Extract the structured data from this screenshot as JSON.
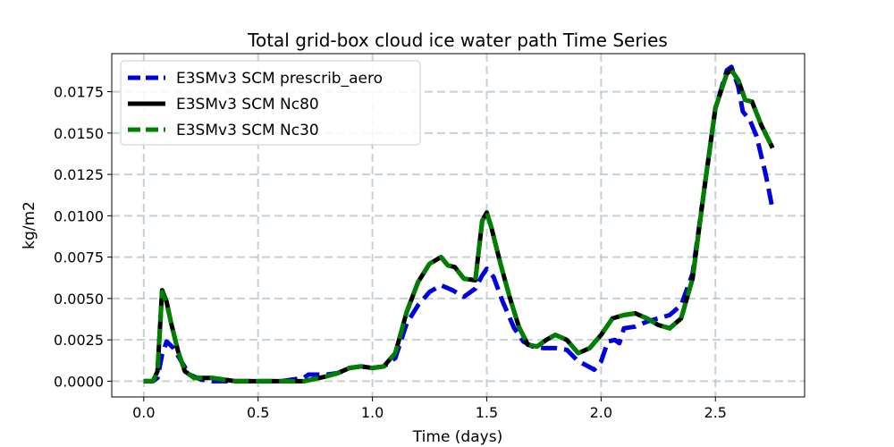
{
  "chart_data": {
    "type": "line",
    "title": "Total grid-box cloud ice water path Time Series",
    "xlabel": "Time (days)",
    "ylabel": "kg/m2",
    "xlim": [
      -0.14,
      2.89
    ],
    "ylim": [
      -0.00095,
      0.0198
    ],
    "xticks": [
      0.0,
      0.5,
      1.0,
      1.5,
      2.0,
      2.5
    ],
    "xtick_labels": [
      "0.0",
      "0.5",
      "1.0",
      "1.5",
      "2.0",
      "2.5"
    ],
    "yticks": [
      0.0,
      0.0025,
      0.005,
      0.0075,
      0.01,
      0.0125,
      0.015,
      0.0175
    ],
    "ytick_labels": [
      "0.0000",
      "0.0025",
      "0.0050",
      "0.0075",
      "0.0100",
      "0.0125",
      "0.0150",
      "0.0175"
    ],
    "grid": true,
    "legend_position": "top-left",
    "series": [
      {
        "name": "E3SMv3 SCM prescrib_aero",
        "color": "#0000dd",
        "style": "dashed",
        "points": [
          [
            0,
            0
          ],
          [
            0.04,
            0
          ],
          [
            0.06,
            0.0002
          ],
          [
            0.08,
            0.0016
          ],
          [
            0.1,
            0.0024
          ],
          [
            0.13,
            0.002
          ],
          [
            0.16,
            0.0013
          ],
          [
            0.2,
            0.0004
          ],
          [
            0.25,
            0.0001
          ],
          [
            0.3,
            0
          ],
          [
            0.4,
            0
          ],
          [
            0.5,
            0
          ],
          [
            0.6,
            0
          ],
          [
            0.7,
            0.0002
          ],
          [
            0.72,
            0.0004
          ],
          [
            0.8,
            0.0004
          ],
          [
            0.85,
            0.0005
          ],
          [
            0.9,
            0.0008
          ],
          [
            0.95,
            0.0009
          ],
          [
            1.0,
            0.0008
          ],
          [
            1.05,
            0.0009
          ],
          [
            1.1,
            0.0014
          ],
          [
            1.15,
            0.0035
          ],
          [
            1.2,
            0.0046
          ],
          [
            1.25,
            0.0054
          ],
          [
            1.3,
            0.0058
          ],
          [
            1.35,
            0.0055
          ],
          [
            1.4,
            0.0051
          ],
          [
            1.45,
            0.0056
          ],
          [
            1.48,
            0.0064
          ],
          [
            1.5,
            0.0068
          ],
          [
            1.53,
            0.0063
          ],
          [
            1.57,
            0.0048
          ],
          [
            1.62,
            0.0032
          ],
          [
            1.66,
            0.0024
          ],
          [
            1.7,
            0.0021
          ],
          [
            1.75,
            0.002
          ],
          [
            1.8,
            0.002
          ],
          [
            1.85,
            0.0019
          ],
          [
            1.9,
            0.0012
          ],
          [
            1.93,
            0.001
          ],
          [
            1.97,
            0.0007
          ],
          [
            2.0,
            0.0012
          ],
          [
            2.03,
            0.0024
          ],
          [
            2.06,
            0.0025
          ],
          [
            2.08,
            0.0023
          ],
          [
            2.1,
            0.0032
          ],
          [
            2.15,
            0.0033
          ],
          [
            2.2,
            0.0036
          ],
          [
            2.25,
            0.0038
          ],
          [
            2.3,
            0.004
          ],
          [
            2.35,
            0.0046
          ],
          [
            2.4,
            0.0065
          ],
          [
            2.45,
            0.0115
          ],
          [
            2.5,
            0.0165
          ],
          [
            2.55,
            0.0188
          ],
          [
            2.57,
            0.019
          ],
          [
            2.6,
            0.0178
          ],
          [
            2.62,
            0.0163
          ],
          [
            2.65,
            0.0158
          ],
          [
            2.68,
            0.0148
          ],
          [
            2.72,
            0.0125
          ],
          [
            2.75,
            0.0104
          ]
        ]
      },
      {
        "name": "E3SMv3 SCM Nc80",
        "color": "#000000",
        "style": "solid",
        "points": [
          [
            0,
            0
          ],
          [
            0.04,
            0
          ],
          [
            0.06,
            0.0006
          ],
          [
            0.08,
            0.0055
          ],
          [
            0.1,
            0.0048
          ],
          [
            0.12,
            0.0035
          ],
          [
            0.15,
            0.0018
          ],
          [
            0.18,
            0.0006
          ],
          [
            0.22,
            0.0002
          ],
          [
            0.3,
            0.0002
          ],
          [
            0.4,
            0
          ],
          [
            0.5,
            0
          ],
          [
            0.6,
            0
          ],
          [
            0.7,
            0
          ],
          [
            0.8,
            0.0003
          ],
          [
            0.85,
            0.0005
          ],
          [
            0.9,
            0.0008
          ],
          [
            0.95,
            0.0009
          ],
          [
            1.0,
            0.0008
          ],
          [
            1.05,
            0.0009
          ],
          [
            1.1,
            0.0017
          ],
          [
            1.15,
            0.0042
          ],
          [
            1.2,
            0.006
          ],
          [
            1.25,
            0.0071
          ],
          [
            1.3,
            0.0075
          ],
          [
            1.33,
            0.007
          ],
          [
            1.36,
            0.0069
          ],
          [
            1.4,
            0.0062
          ],
          [
            1.45,
            0.0061
          ],
          [
            1.48,
            0.0097
          ],
          [
            1.5,
            0.0102
          ],
          [
            1.52,
            0.0093
          ],
          [
            1.56,
            0.0071
          ],
          [
            1.6,
            0.0051
          ],
          [
            1.64,
            0.0033
          ],
          [
            1.68,
            0.0022
          ],
          [
            1.72,
            0.0021
          ],
          [
            1.76,
            0.0025
          ],
          [
            1.8,
            0.0028
          ],
          [
            1.85,
            0.0025
          ],
          [
            1.9,
            0.0017
          ],
          [
            1.95,
            0.002
          ],
          [
            2.0,
            0.0028
          ],
          [
            2.05,
            0.0038
          ],
          [
            2.1,
            0.004
          ],
          [
            2.15,
            0.0041
          ],
          [
            2.2,
            0.0038
          ],
          [
            2.25,
            0.0034
          ],
          [
            2.3,
            0.0032
          ],
          [
            2.35,
            0.0038
          ],
          [
            2.4,
            0.0062
          ],
          [
            2.45,
            0.0115
          ],
          [
            2.5,
            0.0165
          ],
          [
            2.55,
            0.0186
          ],
          [
            2.57,
            0.0188
          ],
          [
            2.6,
            0.0182
          ],
          [
            2.63,
            0.017
          ],
          [
            2.66,
            0.0169
          ],
          [
            2.7,
            0.0155
          ],
          [
            2.75,
            0.0141
          ]
        ]
      },
      {
        "name": "E3SMv3 SCM Nc30",
        "color": "#008000",
        "style": "dashed",
        "points": [
          [
            0,
            0
          ],
          [
            0.04,
            0
          ],
          [
            0.06,
            0.0006
          ],
          [
            0.08,
            0.0054
          ],
          [
            0.1,
            0.0047
          ],
          [
            0.12,
            0.0035
          ],
          [
            0.15,
            0.0018
          ],
          [
            0.18,
            0.0006
          ],
          [
            0.22,
            0.0002
          ],
          [
            0.3,
            0.0002
          ],
          [
            0.4,
            0
          ],
          [
            0.5,
            0
          ],
          [
            0.6,
            0
          ],
          [
            0.7,
            0
          ],
          [
            0.8,
            0.0003
          ],
          [
            0.85,
            0.0005
          ],
          [
            0.9,
            0.0008
          ],
          [
            0.95,
            0.0009
          ],
          [
            1.0,
            0.0008
          ],
          [
            1.05,
            0.0009
          ],
          [
            1.1,
            0.0017
          ],
          [
            1.15,
            0.0042
          ],
          [
            1.2,
            0.006
          ],
          [
            1.25,
            0.0071
          ],
          [
            1.3,
            0.0075
          ],
          [
            1.33,
            0.007
          ],
          [
            1.36,
            0.0069
          ],
          [
            1.4,
            0.0062
          ],
          [
            1.45,
            0.0061
          ],
          [
            1.48,
            0.0097
          ],
          [
            1.5,
            0.0102
          ],
          [
            1.52,
            0.0093
          ],
          [
            1.56,
            0.0071
          ],
          [
            1.6,
            0.0051
          ],
          [
            1.64,
            0.0033
          ],
          [
            1.68,
            0.0022
          ],
          [
            1.72,
            0.0021
          ],
          [
            1.76,
            0.0025
          ],
          [
            1.8,
            0.0028
          ],
          [
            1.85,
            0.0025
          ],
          [
            1.9,
            0.0017
          ],
          [
            1.95,
            0.002
          ],
          [
            2.0,
            0.0028
          ],
          [
            2.05,
            0.0038
          ],
          [
            2.1,
            0.004
          ],
          [
            2.15,
            0.0041
          ],
          [
            2.2,
            0.0038
          ],
          [
            2.25,
            0.0034
          ],
          [
            2.3,
            0.0032
          ],
          [
            2.35,
            0.0038
          ],
          [
            2.4,
            0.0062
          ],
          [
            2.45,
            0.0115
          ],
          [
            2.5,
            0.0165
          ],
          [
            2.55,
            0.0186
          ],
          [
            2.57,
            0.0188
          ],
          [
            2.6,
            0.0182
          ],
          [
            2.63,
            0.017
          ],
          [
            2.66,
            0.0169
          ],
          [
            2.7,
            0.0155
          ],
          [
            2.75,
            0.0141
          ]
        ]
      }
    ]
  }
}
